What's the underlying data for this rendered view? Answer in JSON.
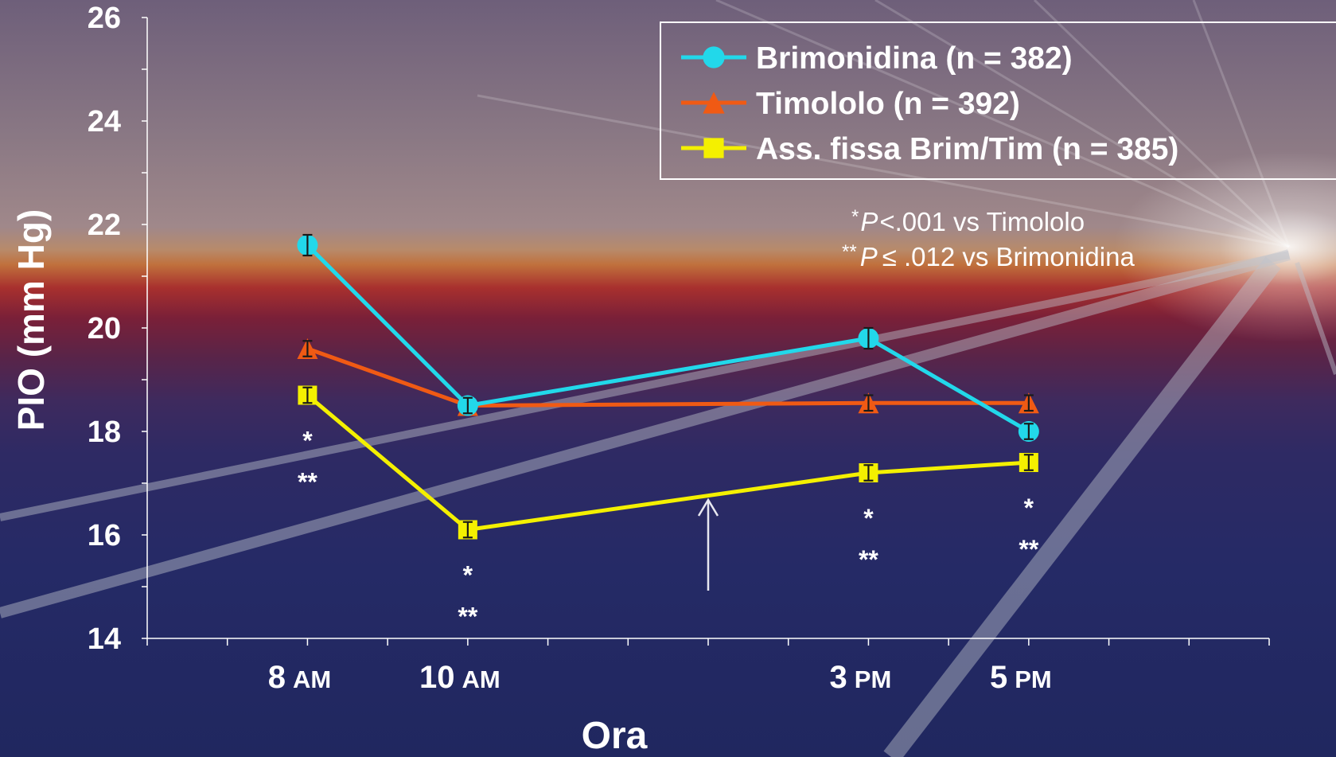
{
  "chart_data": {
    "type": "line",
    "xlabel": "Ora",
    "ylabel": "PIO (mm Hg)",
    "ylim": [
      14,
      26
    ],
    "yticks": [
      "14",
      "16",
      "18",
      "20",
      "22",
      "24",
      "26"
    ],
    "x_ticks": [
      {
        "num": "8",
        "unit": "AM"
      },
      {
        "num": "10",
        "unit": "AM"
      },
      {
        "num": "3",
        "unit": "PM"
      },
      {
        "num": "5",
        "unit": "PM"
      }
    ],
    "x_hours": [
      8,
      10,
      15,
      17
    ],
    "x_range": [
      6,
      20
    ],
    "series": [
      {
        "name": "Brimonidina (n = 382)",
        "marker": "circle",
        "color": "#22d8ea",
        "values": [
          21.6,
          18.5,
          19.8,
          18.0
        ],
        "errors": [
          0.2,
          0.15,
          0.2,
          0.15
        ]
      },
      {
        "name": "Timololo (n = 392)",
        "marker": "triangle",
        "color": "#f05a14",
        "values": [
          19.6,
          18.5,
          18.55,
          18.55
        ],
        "errors": [
          0.15,
          0.15,
          0.15,
          0.15
        ]
      },
      {
        "name": "Ass. fissa Brim/Tim (n = 385)",
        "marker": "square",
        "color": "#f4f000",
        "values": [
          18.7,
          16.1,
          17.2,
          17.4
        ],
        "errors": [
          0.15,
          0.15,
          0.15,
          0.15
        ]
      }
    ],
    "significance": [
      {
        "x_index": 0,
        "single": "*",
        "double": "**"
      },
      {
        "x_index": 1,
        "single": "*",
        "double": "**"
      },
      {
        "x_index": 2,
        "single": "*",
        "double": "**"
      },
      {
        "x_index": 3,
        "single": "*",
        "double": "**"
      }
    ],
    "footnotes": {
      "line1_mark": "*",
      "line1_p": "P",
      "line1_text": "<.001 vs Timololo",
      "line2_mark": "**",
      "line2_p": "P",
      "line2_text": "≤ .012 vs Brimonidina"
    },
    "arrow_hour": 13,
    "legend_position": "top-right",
    "grid": false
  }
}
